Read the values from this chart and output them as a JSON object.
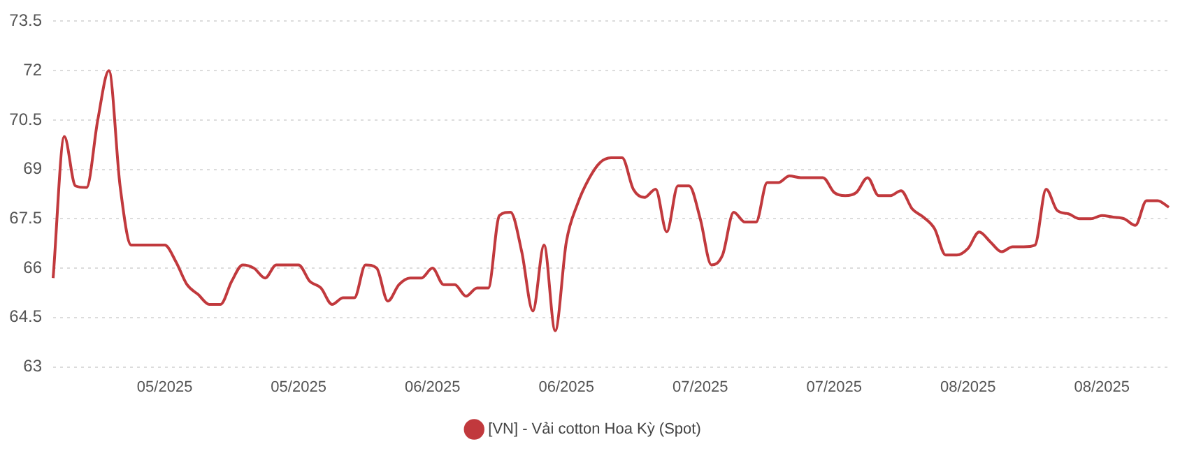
{
  "chart_data": {
    "type": "line",
    "categories": [
      null,
      null,
      null,
      null,
      null,
      null,
      null,
      null,
      null,
      null,
      "05/2025",
      null,
      null,
      null,
      null,
      null,
      null,
      null,
      null,
      null,
      null,
      null,
      "05/2025",
      null,
      null,
      null,
      null,
      null,
      null,
      null,
      null,
      null,
      null,
      null,
      "06/2025",
      null,
      null,
      null,
      null,
      null,
      null,
      null,
      null,
      null,
      null,
      null,
      "06/2025",
      null,
      null,
      null,
      null,
      null,
      null,
      null,
      null,
      null,
      null,
      null,
      "07/2025",
      null,
      null,
      null,
      null,
      null,
      null,
      null,
      null,
      null,
      null,
      null,
      "07/2025",
      null,
      null,
      null,
      null,
      null,
      null,
      null,
      null,
      null,
      null,
      null,
      "08/2025",
      null,
      null,
      null,
      null,
      null,
      null,
      null,
      null,
      null,
      null,
      null,
      "08/2025",
      null,
      null,
      null,
      null,
      null,
      null
    ],
    "series": [
      {
        "name": "[VN] - Vải cotton Hoa Kỳ (Spot)",
        "color": "#c1393d",
        "values": [
          65.7,
          70.0,
          68.5,
          68.45,
          70.5,
          72.0,
          68.5,
          66.7,
          66.7,
          66.7,
          66.7,
          66.2,
          65.5,
          65.2,
          64.9,
          64.9,
          65.6,
          66.1,
          66.0,
          65.7,
          66.1,
          66.1,
          66.1,
          65.6,
          65.4,
          64.9,
          65.1,
          65.1,
          66.1,
          66.0,
          65.0,
          65.5,
          65.7,
          65.7,
          66.0,
          65.5,
          65.5,
          65.15,
          65.4,
          65.4,
          67.6,
          67.7,
          66.5,
          64.7,
          66.7,
          64.1,
          66.8,
          67.95,
          68.7,
          69.2,
          69.35,
          69.35,
          68.4,
          68.15,
          68.4,
          67.1,
          68.5,
          68.5,
          67.5,
          66.1,
          66.4,
          67.7,
          67.4,
          67.4,
          68.6,
          68.6,
          68.8,
          68.75,
          68.75,
          68.75,
          68.3,
          68.2,
          68.3,
          68.75,
          68.2,
          68.2,
          68.35,
          67.8,
          67.55,
          67.2,
          66.4,
          66.4,
          66.6,
          67.1,
          66.8,
          66.5,
          66.65,
          66.65,
          66.7,
          68.4,
          67.75,
          67.65,
          67.5,
          67.5,
          67.6,
          67.55,
          67.5,
          67.3,
          68.05,
          68.05,
          67.85
        ]
      }
    ],
    "ylim": [
      63,
      73.5
    ],
    "yticks": [
      63,
      64.5,
      66,
      67.5,
      69,
      70.5,
      72,
      73.5
    ],
    "grid": "y",
    "legend": "bottom",
    "marker": "none",
    "line_style": "solid"
  }
}
